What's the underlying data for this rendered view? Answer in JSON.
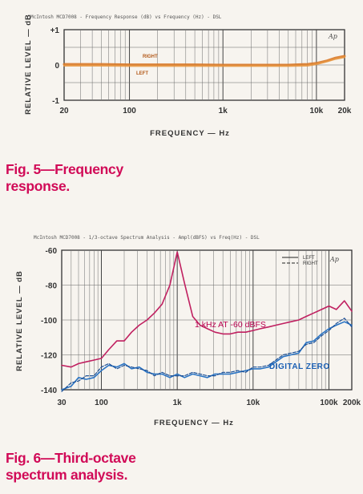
{
  "fig5": {
    "caption_line1": "Fig. 5—Frequency",
    "caption_line2": "response."
  },
  "fig6": {
    "caption_line1": "Fig. 6—Third-octave",
    "caption_line2": "spectrum analysis."
  },
  "colors": {
    "orange_trace": "#d87a2a",
    "magenta_trace": "#c02060",
    "blue_trace": "#2a74c4",
    "caption": "#d10a57"
  },
  "chart_data": [
    {
      "type": "line",
      "header": "McIntosh MCD7008 -    Frequency Response (dB) vs Frequency (Hz)       - DSL",
      "xlabel": "FREQUENCY — Hz",
      "ylabel": "RELATIVE LEVEL — dB",
      "xscale": "log",
      "xlim": [
        20,
        20000
      ],
      "ylim": [
        -1,
        1
      ],
      "x_tick_labels": [
        {
          "v": 20,
          "label": "20"
        },
        {
          "v": 100,
          "label": "100"
        },
        {
          "v": 1000,
          "label": "1k"
        },
        {
          "v": 10000,
          "label": "10k"
        },
        {
          "v": 20000,
          "label": "20k"
        }
      ],
      "y_tick_labels": [
        {
          "v": 1,
          "label": "+1"
        },
        {
          "v": 0,
          "label": "0"
        },
        {
          "v": -1,
          "label": "-1"
        }
      ],
      "ap_logo": "Ap",
      "grid": true,
      "series": [
        {
          "name": "RIGHT",
          "x": [
            20,
            50,
            100,
            500,
            1000,
            5000,
            8000,
            10000,
            13000,
            16000,
            20000
          ],
          "y": [
            0.02,
            0.02,
            0.01,
            0.01,
            0.0,
            0.0,
            0.02,
            0.05,
            0.12,
            0.2,
            0.25
          ]
        },
        {
          "name": "LEFT",
          "x": [
            20,
            50,
            100,
            500,
            1000,
            5000,
            8000,
            10000,
            13000,
            16000,
            20000
          ],
          "y": [
            -0.02,
            -0.02,
            -0.03,
            -0.03,
            -0.03,
            -0.03,
            -0.02,
            0.02,
            0.1,
            0.17,
            0.22
          ]
        }
      ]
    },
    {
      "type": "line",
      "header": "McIntosh MCD7008 - 1/3-octave Spectrum Analysis - Ampl(dBFS) vs Freq(Hz) - DSL",
      "xlabel": "FREQUENCY — Hz",
      "ylabel": "RELATIVE LEVEL — dB",
      "xscale": "log",
      "xlim": [
        30,
        200000
      ],
      "ylim": [
        -140,
        -60
      ],
      "x_tick_labels": [
        {
          "v": 30,
          "label": "30"
        },
        {
          "v": 100,
          "label": "100"
        },
        {
          "v": 1000,
          "label": "1k"
        },
        {
          "v": 10000,
          "label": "10k"
        },
        {
          "v": 100000,
          "label": "100k"
        },
        {
          "v": 200000,
          "label": "200k"
        }
      ],
      "y_tick_labels": [
        {
          "v": -60,
          "label": "-60"
        },
        {
          "v": -80,
          "label": "-80"
        },
        {
          "v": -100,
          "label": "-100"
        },
        {
          "v": -120,
          "label": "-120"
        },
        {
          "v": -140,
          "label": "-140"
        }
      ],
      "legend": [
        "LEFT",
        "RIGHT"
      ],
      "legend_position": "top-right",
      "ap_logo": "Ap",
      "annotations": [
        {
          "text": "1 kHz AT -60 dBFS",
          "color": "#c02060"
        },
        {
          "text": "DIGITAL ZERO",
          "color": "#2a74c4"
        }
      ],
      "grid": true,
      "series": [
        {
          "name": "1 kHz AT -60 dBFS",
          "x": [
            30,
            40,
            50,
            63,
            80,
            100,
            125,
            160,
            200,
            250,
            315,
            400,
            500,
            630,
            800,
            1000,
            1250,
            1600,
            2000,
            2500,
            3150,
            4000,
            5000,
            6300,
            8000,
            10000,
            12500,
            16000,
            20000,
            25000,
            31500,
            40000,
            50000,
            63000,
            80000,
            100000,
            125000,
            160000,
            200000
          ],
          "y": [
            -126,
            -127,
            -125,
            -124,
            -123,
            -122,
            -117,
            -112,
            -112,
            -107,
            -103,
            -100,
            -96,
            -91,
            -80,
            -61,
            -79,
            -98,
            -103,
            -105,
            -107,
            -108,
            -108,
            -107,
            -107,
            -106,
            -105,
            -104,
            -103,
            -102,
            -101,
            -100,
            -98,
            -96,
            -94,
            -92,
            -94,
            -89,
            -95
          ]
        },
        {
          "name": "DIGITAL ZERO (LEFT)",
          "x": [
            30,
            40,
            50,
            63,
            80,
            100,
            125,
            160,
            200,
            250,
            315,
            400,
            500,
            630,
            800,
            1000,
            1250,
            1600,
            2000,
            2500,
            3150,
            4000,
            5000,
            6300,
            8000,
            10000,
            12500,
            16000,
            20000,
            25000,
            31500,
            40000,
            50000,
            63000,
            80000,
            100000,
            125000,
            160000,
            200000
          ],
          "y": [
            -140,
            -138,
            -133,
            -134,
            -133,
            -129,
            -126,
            -127,
            -125,
            -128,
            -127,
            -130,
            -131,
            -131,
            -133,
            -131,
            -133,
            -131,
            -132,
            -133,
            -131,
            -131,
            -131,
            -130,
            -129,
            -128,
            -128,
            -127,
            -124,
            -121,
            -120,
            -119,
            -113,
            -112,
            -108,
            -105,
            -103,
            -101,
            -103
          ]
        },
        {
          "name": "DIGITAL ZERO (RIGHT)",
          "x": [
            30,
            40,
            50,
            63,
            80,
            100,
            125,
            160,
            200,
            250,
            315,
            400,
            500,
            630,
            800,
            1000,
            1250,
            1600,
            2000,
            2500,
            3150,
            4000,
            5000,
            6300,
            8000,
            10000,
            12500,
            16000,
            20000,
            25000,
            31500,
            40000,
            50000,
            63000,
            80000,
            100000,
            125000,
            160000,
            200000
          ],
          "y": [
            -141,
            -136,
            -135,
            -132,
            -132,
            -127,
            -125,
            -128,
            -126,
            -127,
            -128,
            -129,
            -132,
            -130,
            -132,
            -132,
            -132,
            -130,
            -131,
            -132,
            -132,
            -130,
            -130,
            -129,
            -130,
            -127,
            -127,
            -126,
            -123,
            -120,
            -119,
            -118,
            -114,
            -113,
            -109,
            -106,
            -102,
            -99,
            -104
          ]
        }
      ]
    }
  ]
}
